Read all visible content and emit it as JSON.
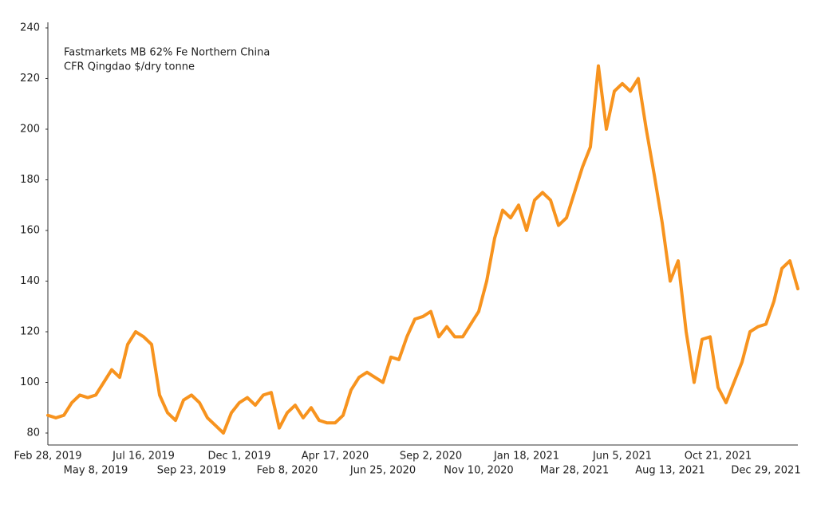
{
  "chart_data": {
    "type": "line",
    "title": [
      "Fastmarkets MB 62% Fe Northern China",
      "CFR Qingdao $/dry tonne"
    ],
    "categories": [
      "Feb 28, 2019",
      null,
      null,
      null,
      null,
      null,
      "May 8, 2019",
      null,
      null,
      null,
      null,
      null,
      "Jul 16, 2019",
      null,
      null,
      null,
      null,
      null,
      "Sep 23, 2019",
      null,
      null,
      null,
      null,
      null,
      "Dec 1, 2019",
      null,
      null,
      null,
      null,
      null,
      "Feb 8, 2020",
      null,
      null,
      null,
      null,
      null,
      "Apr 17, 2020",
      null,
      null,
      null,
      null,
      null,
      "Jun 25, 2020",
      null,
      null,
      null,
      null,
      null,
      "Sep 2, 2020",
      null,
      null,
      null,
      null,
      null,
      "Nov 10, 2020",
      null,
      null,
      null,
      null,
      null,
      "Jan 18, 2021",
      null,
      null,
      null,
      null,
      null,
      "Mar 28, 2021",
      null,
      null,
      null,
      null,
      null,
      "Jun 5, 2021",
      null,
      null,
      null,
      null,
      null,
      "Aug 13, 2021",
      null,
      null,
      null,
      null,
      null,
      "Oct 21, 2021",
      null,
      null,
      null,
      null,
      null,
      "Dec 29, 2021",
      null,
      null,
      null,
      null
    ],
    "series": [
      {
        "name": "Fastmarkets MB 62% Fe Northern China CFR Qingdao",
        "color": "#f7931e",
        "values": [
          87,
          86,
          87,
          92,
          95,
          94,
          95,
          100,
          105,
          102,
          115,
          120,
          118,
          115,
          95,
          88,
          85,
          93,
          95,
          92,
          86,
          83,
          80,
          88,
          92,
          94,
          91,
          95,
          96,
          82,
          88,
          91,
          86,
          90,
          85,
          84,
          84,
          87,
          97,
          102,
          104,
          102,
          100,
          110,
          109,
          118,
          125,
          126,
          128,
          118,
          122,
          118,
          118,
          123,
          128,
          140,
          157,
          168,
          165,
          170,
          160,
          172,
          175,
          172,
          162,
          165,
          175,
          185,
          193,
          225,
          200,
          215,
          218,
          215,
          220,
          200,
          182,
          163,
          140,
          148,
          120,
          100,
          117,
          118,
          98,
          92,
          100,
          108,
          120,
          122,
          123,
          132,
          145,
          148,
          137
        ]
      }
    ],
    "ylim": [
      80,
      240
    ],
    "yticks": [
      80,
      100,
      120,
      140,
      160,
      180,
      200,
      220,
      240
    ]
  }
}
